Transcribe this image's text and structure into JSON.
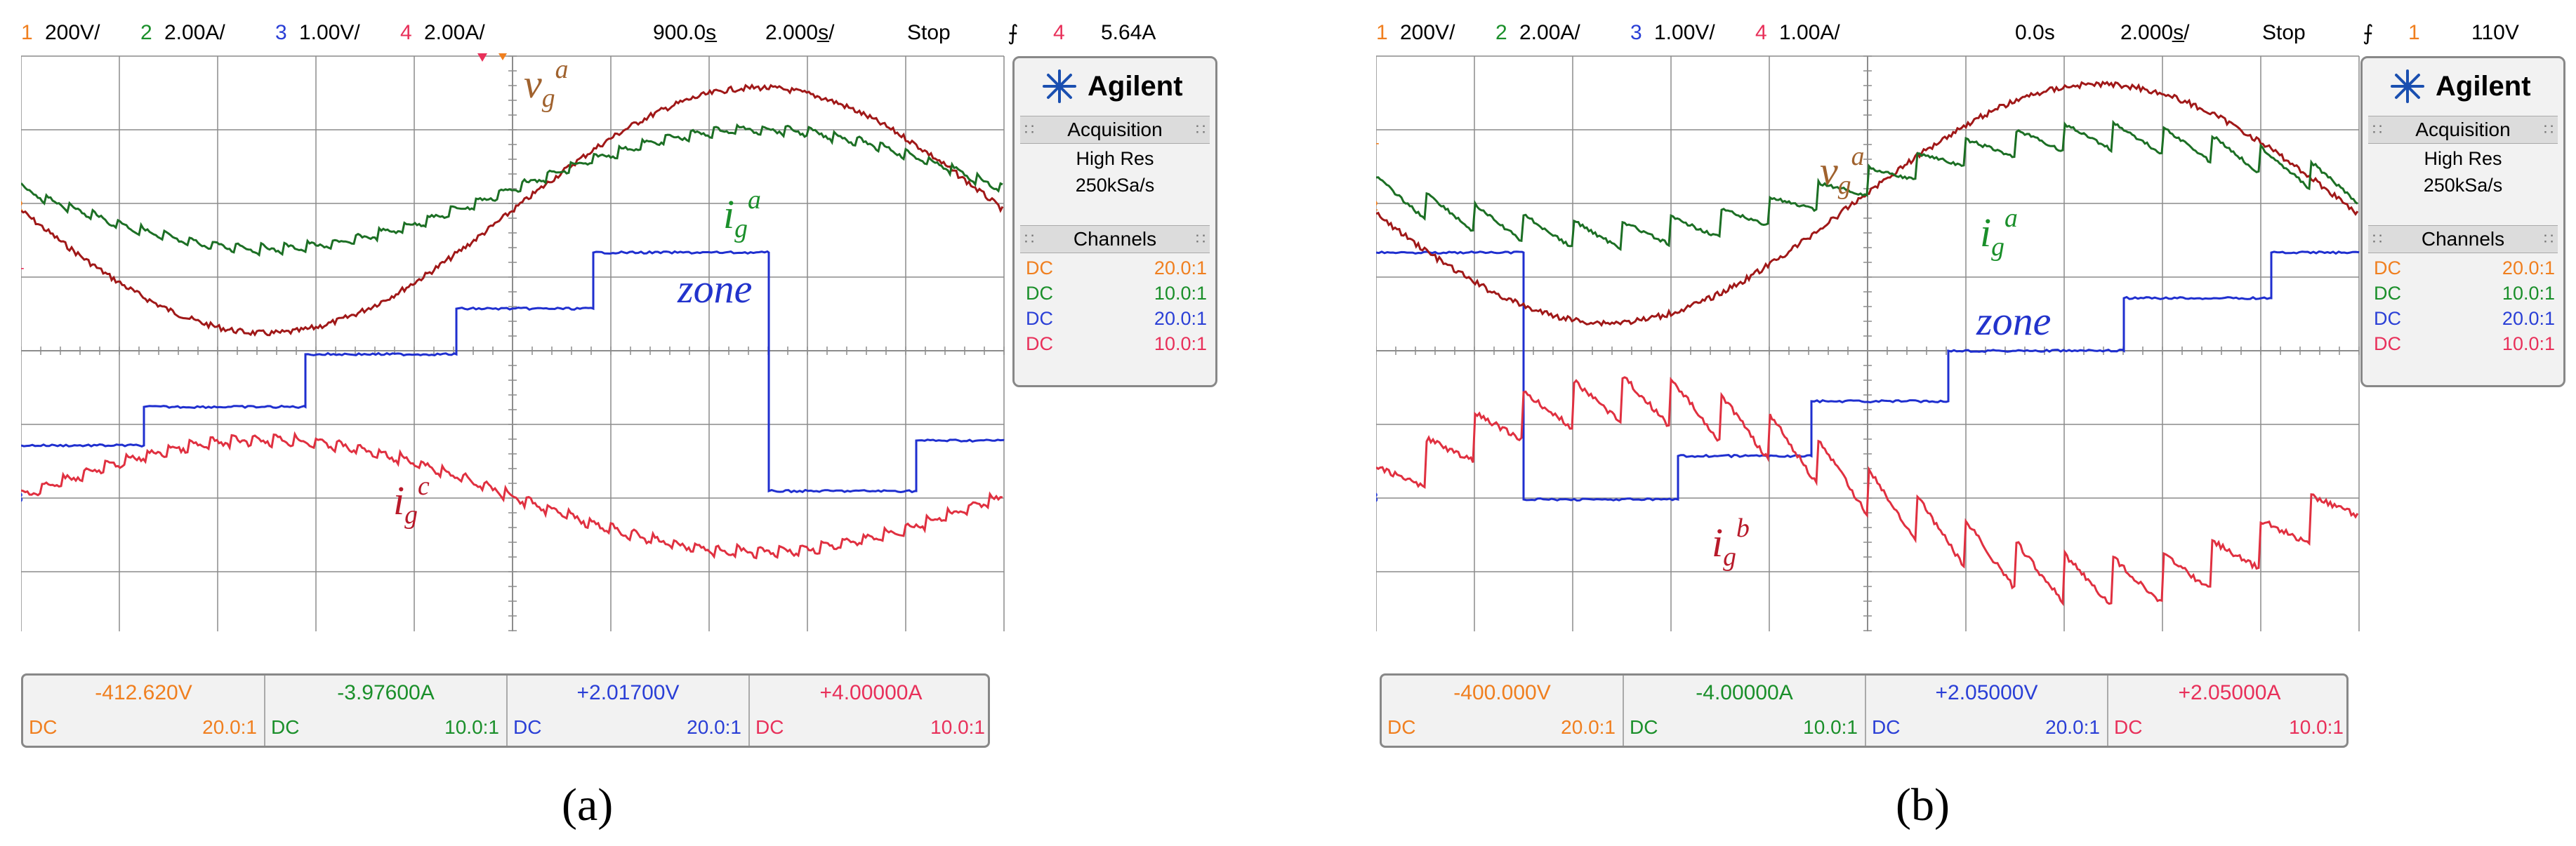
{
  "colors": {
    "ch1": "#f07f1f",
    "ch2": "#1a8f2a",
    "ch3": "#2a3fd6",
    "ch4": "#e8305a",
    "vg_trace": "#a01818",
    "ig_a_trace": "#1c6f24",
    "zone_trace": "#1f2fcf",
    "ig_trace": "#e03040",
    "label_v": "#a0622e",
    "label_ig_a": "#1a8f2a",
    "label_zone": "#2233cc",
    "label_ig": "#b81a2a",
    "grid": "#8c8c8c"
  },
  "scopes": [
    {
      "id": "a",
      "topbar": {
        "ch1_num": "1",
        "ch1_scale": "200V/",
        "ch2_num": "2",
        "ch2_scale": "2.00A/",
        "ch3_num": "3",
        "ch3_scale": "1.00V/",
        "ch4_num": "4",
        "ch4_scale": "2.00A/",
        "delay": "900.0s̲",
        "timebase": "2.000s̲/",
        "run_state": "Stop",
        "trig_icon": "trigger-edge-icon",
        "trig_ch": "4",
        "trig_level": "5.64A"
      },
      "panel": {
        "brand": "Agilent",
        "acq_header": "Acquisition",
        "acq_mode": "High Res",
        "acq_rate": "250kSa/s",
        "ch_header": "Channels",
        "channels": [
          {
            "coupling": "DC",
            "ratio": "20.0:1"
          },
          {
            "coupling": "DC",
            "ratio": "10.0:1"
          },
          {
            "coupling": "DC",
            "ratio": "20.0:1"
          },
          {
            "coupling": "DC",
            "ratio": "10.0:1"
          }
        ]
      },
      "measurements": [
        {
          "value": "-412.620V",
          "coupling": "DC",
          "ratio": "20.0:1"
        },
        {
          "value": "-3.97600A",
          "coupling": "DC",
          "ratio": "10.0:1"
        },
        {
          "value": "+2.01700V",
          "coupling": "DC",
          "ratio": "20.0:1"
        },
        {
          "value": "+4.00000A",
          "coupling": "DC",
          "ratio": "10.0:1"
        }
      ],
      "labels": {
        "v_main": "v",
        "v_sub": "g",
        "v_sup": "a",
        "ia_main": "i",
        "ia_sub": "g",
        "ia_sup": "a",
        "zone": "zone",
        "ic_main": "i",
        "ic_sub": "g",
        "ic_sup": "c"
      },
      "caption": "(a)"
    },
    {
      "id": "b",
      "topbar": {
        "ch1_num": "1",
        "ch1_scale": "200V/",
        "ch2_num": "2",
        "ch2_scale": "2.00A/",
        "ch3_num": "3",
        "ch3_scale": "1.00V/",
        "ch4_num": "4",
        "ch4_scale": "1.00A/",
        "delay": "0.0s",
        "timebase": "2.000s̲/",
        "run_state": "Stop",
        "trig_icon": "trigger-edge-icon",
        "trig_ch": "1",
        "trig_level": "110V"
      },
      "panel": {
        "brand": "Agilent",
        "acq_header": "Acquisition",
        "acq_mode": "High Res",
        "acq_rate": "250kSa/s",
        "ch_header": "Channels",
        "channels": [
          {
            "coupling": "DC",
            "ratio": "20.0:1"
          },
          {
            "coupling": "DC",
            "ratio": "10.0:1"
          },
          {
            "coupling": "DC",
            "ratio": "20.0:1"
          },
          {
            "coupling": "DC",
            "ratio": "10.0:1"
          }
        ]
      },
      "measurements": [
        {
          "value": "-400.000V",
          "coupling": "DC",
          "ratio": "20.0:1"
        },
        {
          "value": "-4.00000A",
          "coupling": "DC",
          "ratio": "10.0:1"
        },
        {
          "value": "+2.05000V",
          "coupling": "DC",
          "ratio": "20.0:1"
        },
        {
          "value": "+2.05000A",
          "coupling": "DC",
          "ratio": "10.0:1"
        }
      ],
      "labels": {
        "v_main": "v",
        "v_sub": "g",
        "v_sup": "a",
        "ia_main": "i",
        "ia_sub": "g",
        "ia_sup": "a",
        "zone": "zone",
        "ib_main": "i",
        "ib_sub": "g",
        "ib_sup": "b"
      },
      "caption": "(b)"
    }
  ]
}
